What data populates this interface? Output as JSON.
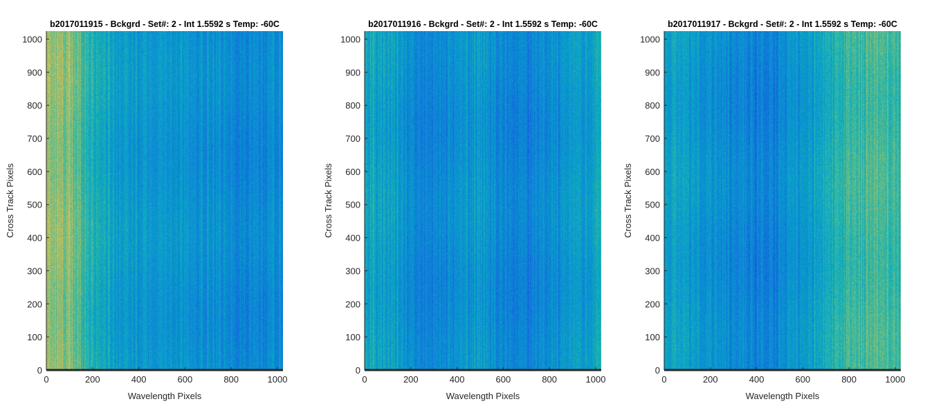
{
  "chart_data": [
    {
      "type": "heatmap",
      "title": "b2017011915 - Bckgrd - Set#: 2 - Int 1.5592 s Temp: -60C",
      "xlabel": "Wavelength Pixels",
      "ylabel": "Cross Track Pixels",
      "xlim": [
        0,
        1024
      ],
      "ylim": [
        0,
        1024
      ],
      "xticks": [
        0,
        200,
        400,
        600,
        800,
        1000
      ],
      "yticks": [
        0,
        100,
        200,
        300,
        400,
        500,
        600,
        700,
        800,
        900,
        1000
      ],
      "colormap": "parula",
      "intensity_profile_x": [
        {
          "x": 0,
          "level": 0.82
        },
        {
          "x": 100,
          "level": 0.78
        },
        {
          "x": 200,
          "level": 0.6
        },
        {
          "x": 300,
          "level": 0.5
        },
        {
          "x": 500,
          "level": 0.45
        },
        {
          "x": 700,
          "level": 0.42
        },
        {
          "x": 850,
          "level": 0.38
        },
        {
          "x": 1024,
          "level": 0.4
        }
      ]
    },
    {
      "type": "heatmap",
      "title": "b2017011916 - Bckgrd - Set#: 2 - Int 1.5592 s Temp: -60C",
      "xlabel": "Wavelength Pixels",
      "ylabel": "Cross Track Pixels",
      "xlim": [
        0,
        1024
      ],
      "ylim": [
        0,
        1024
      ],
      "xticks": [
        0,
        200,
        400,
        600,
        800,
        1000
      ],
      "yticks": [
        0,
        100,
        200,
        300,
        400,
        500,
        600,
        700,
        800,
        900,
        1000
      ],
      "colormap": "parula",
      "intensity_profile_x": [
        {
          "x": 0,
          "level": 0.55
        },
        {
          "x": 100,
          "level": 0.5
        },
        {
          "x": 250,
          "level": 0.36
        },
        {
          "x": 400,
          "level": 0.42
        },
        {
          "x": 500,
          "level": 0.48
        },
        {
          "x": 650,
          "level": 0.33
        },
        {
          "x": 800,
          "level": 0.42
        },
        {
          "x": 1024,
          "level": 0.52
        }
      ]
    },
    {
      "type": "heatmap",
      "title": "b2017011917 - Bckgrd - Set#: 2 - Int 1.5592 s Temp: -60C",
      "xlabel": "Wavelength Pixels",
      "ylabel": "Cross Track Pixels",
      "xlim": [
        0,
        1024
      ],
      "ylim": [
        0,
        1024
      ],
      "xticks": [
        0,
        200,
        400,
        600,
        800,
        1000
      ],
      "yticks": [
        0,
        100,
        200,
        300,
        400,
        500,
        600,
        700,
        800,
        900,
        1000
      ],
      "colormap": "parula",
      "intensity_profile_x": [
        {
          "x": 0,
          "level": 0.52
        },
        {
          "x": 150,
          "level": 0.46
        },
        {
          "x": 300,
          "level": 0.38
        },
        {
          "x": 450,
          "level": 0.34
        },
        {
          "x": 600,
          "level": 0.45
        },
        {
          "x": 750,
          "level": 0.62
        },
        {
          "x": 900,
          "level": 0.7
        },
        {
          "x": 1024,
          "level": 0.66
        }
      ]
    }
  ]
}
